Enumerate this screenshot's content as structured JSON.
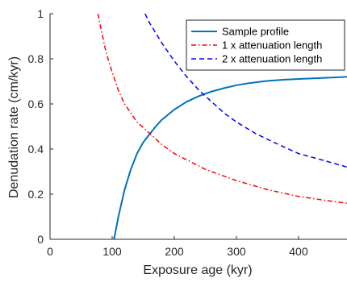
{
  "chart_data": {
    "type": "line",
    "xlabel": "Exposure age (kyr)",
    "ylabel": "Denudation rate (cm/kyr)",
    "xlim": [
      0,
      478
    ],
    "ylim": [
      0,
      1
    ],
    "x_ticks": [
      0,
      100,
      200,
      300,
      400
    ],
    "y_ticks": [
      0,
      0.2,
      0.4,
      0.6,
      0.8,
      1
    ],
    "x_tick_labels": [
      "0",
      "100",
      "200",
      "300",
      "400"
    ],
    "y_tick_labels": [
      "0",
      "0.2",
      "0.4",
      "0.6",
      "0.8",
      "1"
    ],
    "grid": false,
    "legend_position": "top-right",
    "series": [
      {
        "name": "Sample profile",
        "color": "#0072BD",
        "style": "solid",
        "points": [
          [
            103,
            0
          ],
          [
            110,
            0.1
          ],
          [
            120,
            0.22
          ],
          [
            130,
            0.31
          ],
          [
            140,
            0.38
          ],
          [
            150,
            0.43
          ],
          [
            160,
            0.465
          ],
          [
            170,
            0.5
          ],
          [
            180,
            0.53
          ],
          [
            200,
            0.575
          ],
          [
            220,
            0.61
          ],
          [
            240,
            0.635
          ],
          [
            260,
            0.655
          ],
          [
            280,
            0.67
          ],
          [
            300,
            0.683
          ],
          [
            320,
            0.692
          ],
          [
            350,
            0.702
          ],
          [
            380,
            0.708
          ],
          [
            420,
            0.713
          ],
          [
            478,
            0.72
          ]
        ]
      },
      {
        "name": "1 x attenuation length",
        "color": "#FF0000",
        "style": "dashdot",
        "points": [
          [
            77,
            1.0
          ],
          [
            80,
            0.96
          ],
          [
            90,
            0.83
          ],
          [
            100,
            0.74
          ],
          [
            110,
            0.66
          ],
          [
            120,
            0.6
          ],
          [
            140,
            0.52
          ],
          [
            160,
            0.47
          ],
          [
            180,
            0.42
          ],
          [
            200,
            0.38
          ],
          [
            250,
            0.31
          ],
          [
            300,
            0.26
          ],
          [
            350,
            0.22
          ],
          [
            400,
            0.19
          ],
          [
            450,
            0.17
          ],
          [
            478,
            0.16
          ]
        ]
      },
      {
        "name": "2 x attenuation length",
        "color": "#0000FF",
        "style": "dashed",
        "points": [
          [
            153,
            1.0
          ],
          [
            160,
            0.96
          ],
          [
            180,
            0.87
          ],
          [
            200,
            0.79
          ],
          [
            220,
            0.72
          ],
          [
            240,
            0.66
          ],
          [
            260,
            0.61
          ],
          [
            280,
            0.56
          ],
          [
            300,
            0.52
          ],
          [
            330,
            0.47
          ],
          [
            360,
            0.43
          ],
          [
            400,
            0.38
          ],
          [
            440,
            0.35
          ],
          [
            478,
            0.32
          ]
        ]
      }
    ]
  }
}
